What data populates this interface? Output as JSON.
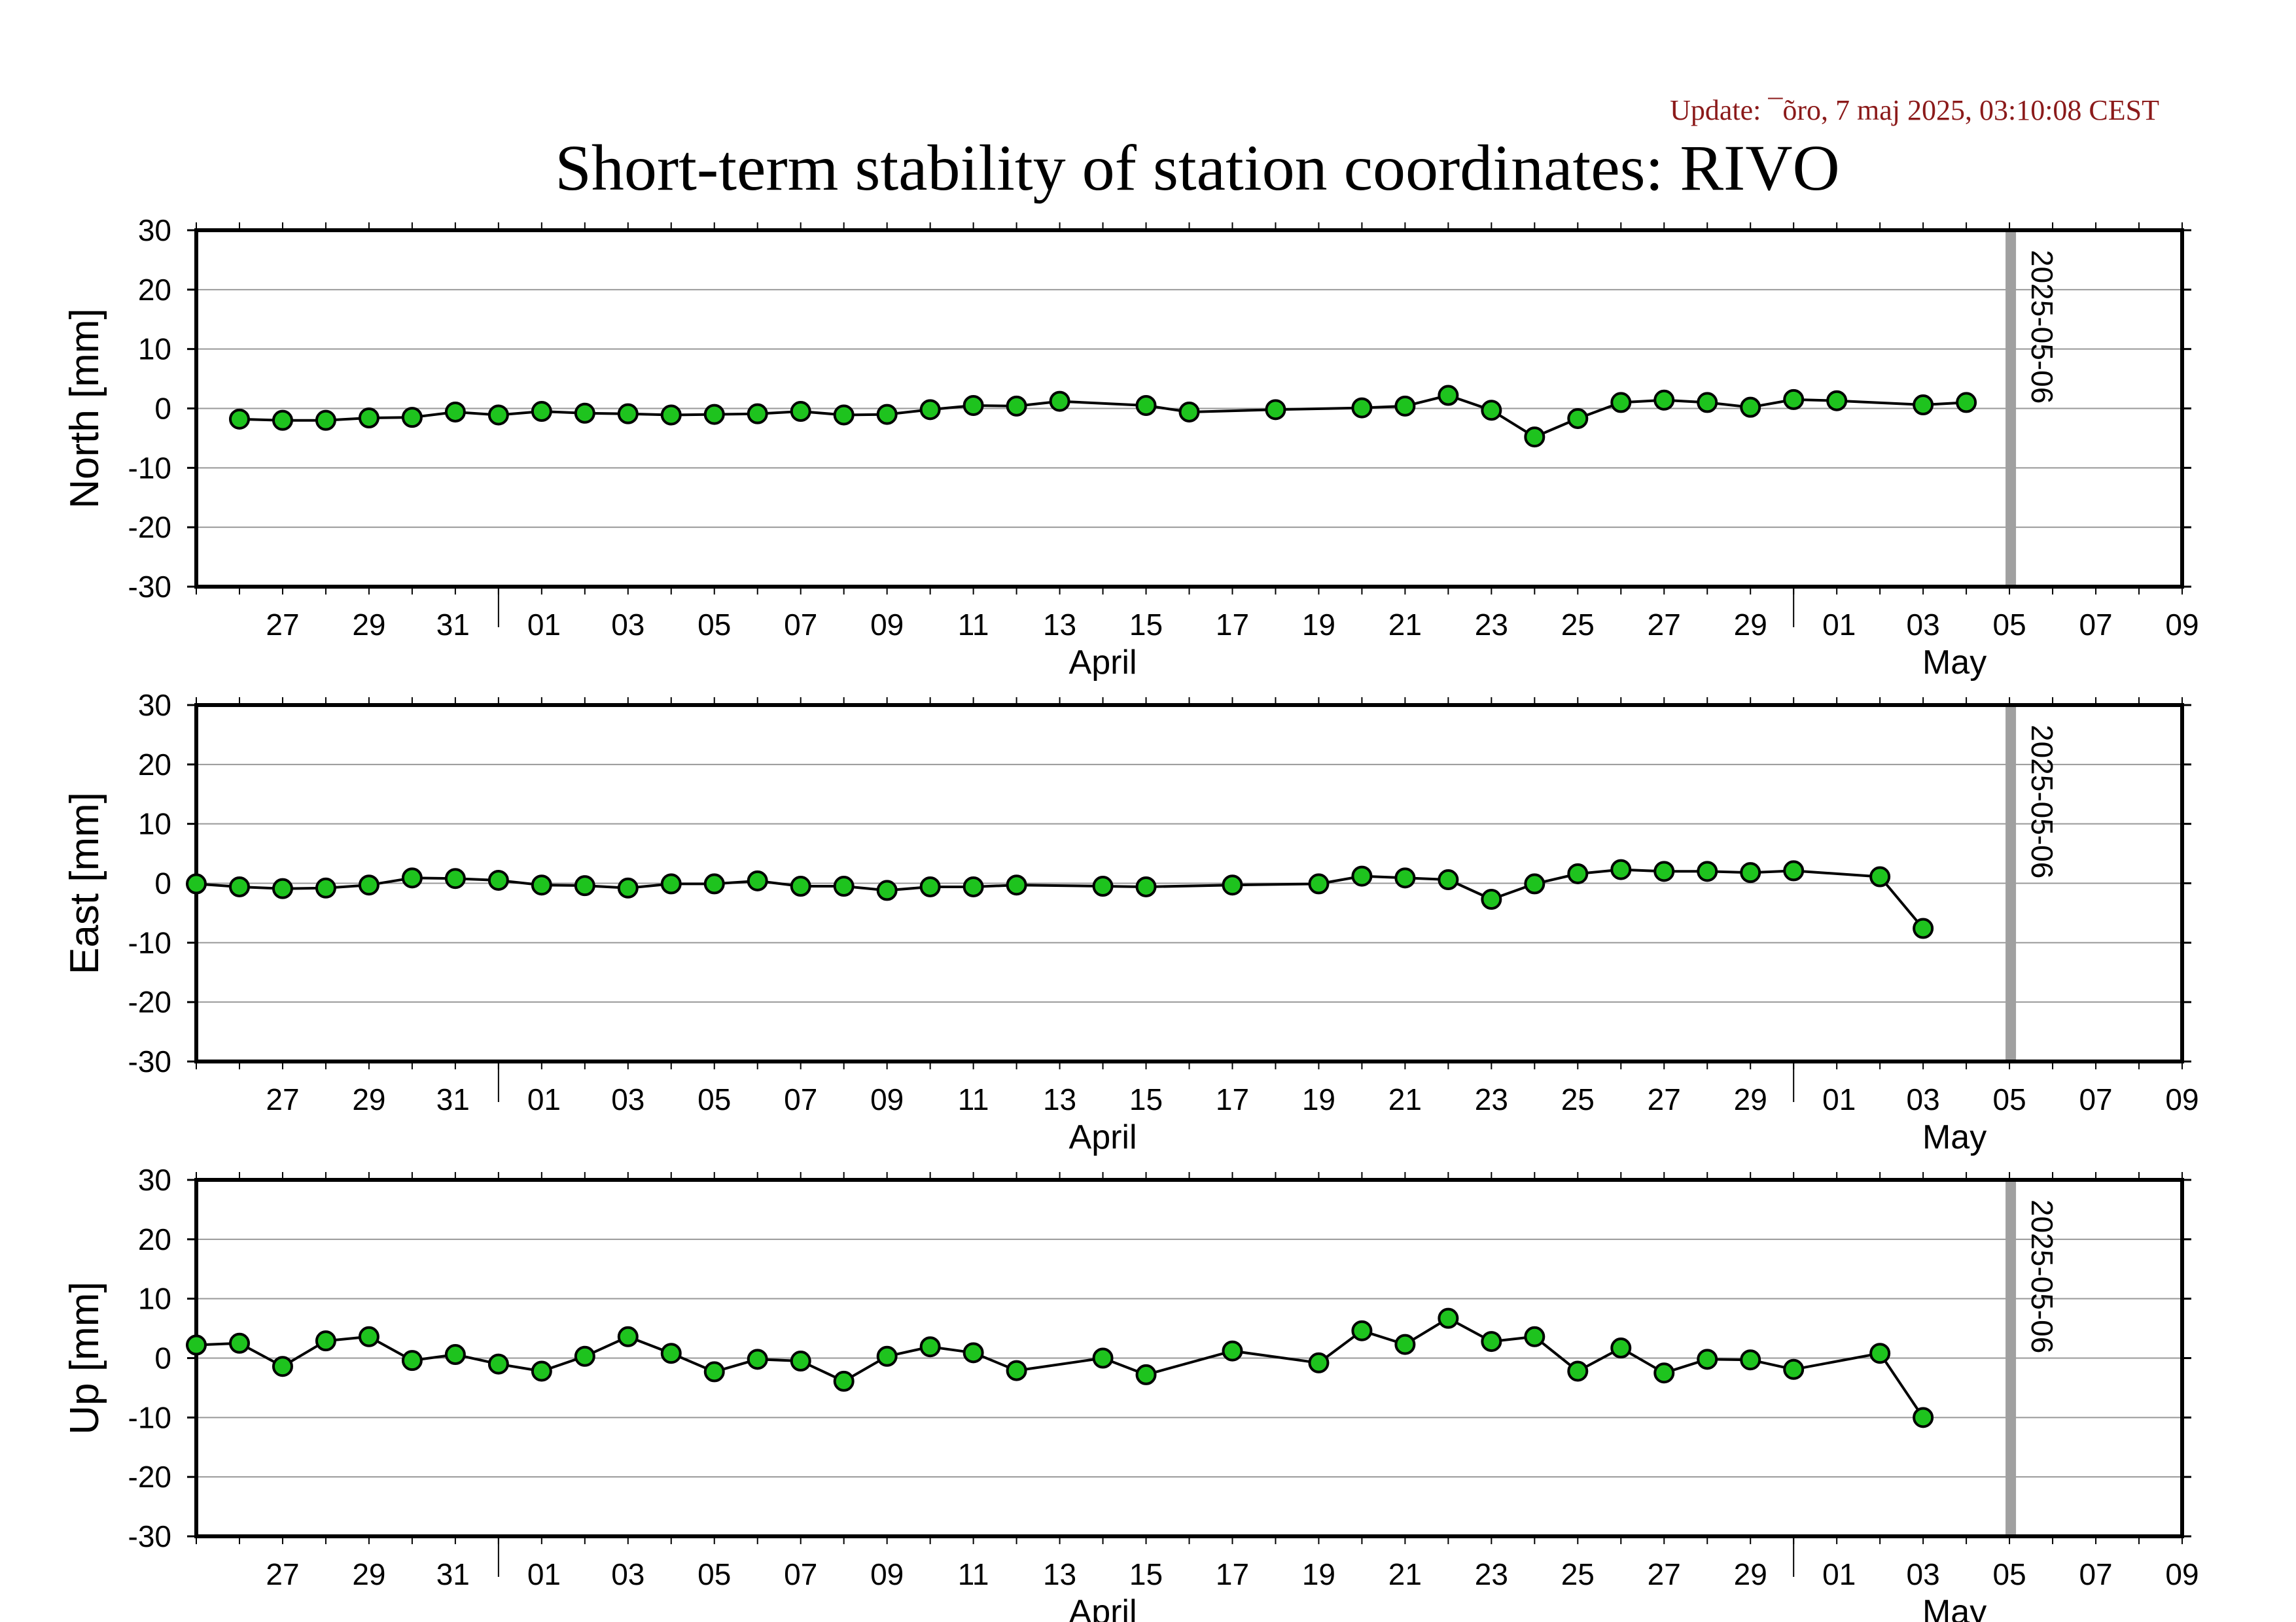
{
  "update_text": "Update: ¯õro, 7 maj 2025, 03:10:08 CEST",
  "title": "Short-term stability of station coordinates: RIVO",
  "colors": {
    "marker_fill": "#1ec31e",
    "marker_edge": "#000000",
    "line": "#000000",
    "grid": "#999999",
    "vline": "#a0a0a0",
    "update": "#8b1a1a"
  },
  "chart_data": [
    {
      "type": "line",
      "ylabel": "North [mm]",
      "ylim": [
        -30,
        30
      ],
      "yticks": [
        -30,
        -20,
        -10,
        0,
        10,
        20,
        30
      ],
      "xlim": [
        "2025-03-25",
        "2025-05-10"
      ],
      "x_tick_labels": [
        "27",
        "29",
        "31",
        "01",
        "03",
        "05",
        "07",
        "09",
        "11",
        "13",
        "15",
        "17",
        "19",
        "21",
        "23",
        "25",
        "27",
        "29",
        "01",
        "03",
        "05",
        "07",
        "09"
      ],
      "month_labels": [
        "April",
        "May"
      ],
      "grid": "horizontal",
      "vline": {
        "date": "2025-05-06",
        "label": "2025-05-06"
      },
      "series": [
        {
          "points": [
            [
              "2025-03-26",
              -1.8
            ],
            [
              "2025-03-27",
              -2.0
            ],
            [
              "2025-03-28",
              -2.0
            ],
            [
              "2025-03-29",
              -1.6
            ],
            [
              "2025-03-30",
              -1.5
            ],
            [
              "2025-03-31",
              -0.6
            ],
            [
              "2025-04-01",
              -1.1
            ],
            [
              "2025-04-02",
              -0.5
            ],
            [
              "2025-04-03",
              -0.8
            ],
            [
              "2025-04-04",
              -0.9
            ],
            [
              "2025-04-05",
              -1.1
            ],
            [
              "2025-04-06",
              -1.0
            ],
            [
              "2025-04-07",
              -0.9
            ],
            [
              "2025-04-08",
              -0.5
            ],
            [
              "2025-04-09",
              -1.1
            ],
            [
              "2025-04-10",
              -1.0
            ],
            [
              "2025-04-11",
              -0.2
            ],
            [
              "2025-04-12",
              0.5
            ],
            [
              "2025-04-13",
              0.4
            ],
            [
              "2025-04-14",
              1.2
            ],
            [
              "2025-04-16",
              0.5
            ],
            [
              "2025-04-17",
              -0.6
            ],
            [
              "2025-04-19",
              -0.2
            ],
            [
              "2025-04-21",
              0.1
            ],
            [
              "2025-04-22",
              0.4
            ],
            [
              "2025-04-23",
              2.2
            ],
            [
              "2025-04-24",
              -0.3
            ],
            [
              "2025-04-25",
              -4.8
            ],
            [
              "2025-04-26",
              -1.7
            ],
            [
              "2025-04-27",
              1.0
            ],
            [
              "2025-04-28",
              1.4
            ],
            [
              "2025-04-29",
              1.0
            ],
            [
              "2025-04-30",
              0.2
            ],
            [
              "2025-05-01",
              1.5
            ],
            [
              "2025-05-02",
              1.3
            ],
            [
              "2025-05-04",
              0.6
            ],
            [
              "2025-05-05",
              1.0
            ]
          ]
        }
      ]
    },
    {
      "type": "line",
      "ylabel": "East [mm]",
      "ylim": [
        -30,
        30
      ],
      "yticks": [
        -30,
        -20,
        -10,
        0,
        10,
        20,
        30
      ],
      "xlim": [
        "2025-03-25",
        "2025-05-10"
      ],
      "x_tick_labels": [
        "27",
        "29",
        "31",
        "01",
        "03",
        "05",
        "07",
        "09",
        "11",
        "13",
        "15",
        "17",
        "19",
        "21",
        "23",
        "25",
        "27",
        "29",
        "01",
        "03",
        "05",
        "07",
        "09"
      ],
      "month_labels": [
        "April",
        "May"
      ],
      "grid": "horizontal",
      "vline": {
        "date": "2025-05-06",
        "label": "2025-05-06"
      },
      "series": [
        {
          "points": [
            [
              "2025-03-25",
              -0.1
            ],
            [
              "2025-03-26",
              -0.6
            ],
            [
              "2025-03-27",
              -0.9
            ],
            [
              "2025-03-28",
              -0.8
            ],
            [
              "2025-03-29",
              -0.3
            ],
            [
              "2025-03-30",
              0.9
            ],
            [
              "2025-03-31",
              0.8
            ],
            [
              "2025-04-01",
              0.5
            ],
            [
              "2025-04-02",
              -0.3
            ],
            [
              "2025-04-03",
              -0.4
            ],
            [
              "2025-04-04",
              -0.8
            ],
            [
              "2025-04-05",
              -0.1
            ],
            [
              "2025-04-06",
              -0.1
            ],
            [
              "2025-04-07",
              0.4
            ],
            [
              "2025-04-08",
              -0.5
            ],
            [
              "2025-04-09",
              -0.5
            ],
            [
              "2025-04-10",
              -1.2
            ],
            [
              "2025-04-11",
              -0.6
            ],
            [
              "2025-04-12",
              -0.6
            ],
            [
              "2025-04-13",
              -0.3
            ],
            [
              "2025-04-15",
              -0.5
            ],
            [
              "2025-04-16",
              -0.6
            ],
            [
              "2025-04-18",
              -0.3
            ],
            [
              "2025-04-20",
              -0.1
            ],
            [
              "2025-04-21",
              1.2
            ],
            [
              "2025-04-22",
              0.9
            ],
            [
              "2025-04-23",
              0.6
            ],
            [
              "2025-04-24",
              -2.7
            ],
            [
              "2025-04-25",
              -0.1
            ],
            [
              "2025-04-26",
              1.6
            ],
            [
              "2025-04-27",
              2.3
            ],
            [
              "2025-04-28",
              2.0
            ],
            [
              "2025-04-29",
              2.0
            ],
            [
              "2025-04-30",
              1.8
            ],
            [
              "2025-05-01",
              2.1
            ],
            [
              "2025-05-03",
              1.1
            ],
            [
              "2025-05-04",
              -7.6
            ]
          ]
        }
      ]
    },
    {
      "type": "line",
      "ylabel": "Up [mm]",
      "ylim": [
        -30,
        30
      ],
      "yticks": [
        -30,
        -20,
        -10,
        0,
        10,
        20,
        30
      ],
      "xlim": [
        "2025-03-25",
        "2025-05-10"
      ],
      "x_tick_labels": [
        "27",
        "29",
        "31",
        "01",
        "03",
        "05",
        "07",
        "09",
        "11",
        "13",
        "15",
        "17",
        "19",
        "21",
        "23",
        "25",
        "27",
        "29",
        "01",
        "03",
        "05",
        "07",
        "09"
      ],
      "month_labels": [
        "April",
        "May"
      ],
      "grid": "horizontal",
      "vline": {
        "date": "2025-05-06",
        "label": "2025-05-06"
      },
      "series": [
        {
          "points": [
            [
              "2025-03-25",
              2.2
            ],
            [
              "2025-03-26",
              2.5
            ],
            [
              "2025-03-27",
              -1.4
            ],
            [
              "2025-03-28",
              2.9
            ],
            [
              "2025-03-29",
              3.6
            ],
            [
              "2025-03-30",
              -0.4
            ],
            [
              "2025-03-31",
              0.6
            ],
            [
              "2025-04-01",
              -1.0
            ],
            [
              "2025-04-02",
              -2.2
            ],
            [
              "2025-04-03",
              0.3
            ],
            [
              "2025-04-04",
              3.6
            ],
            [
              "2025-04-05",
              0.8
            ],
            [
              "2025-04-06",
              -2.3
            ],
            [
              "2025-04-07",
              -0.2
            ],
            [
              "2025-04-08",
              -0.5
            ],
            [
              "2025-04-09",
              -3.9
            ],
            [
              "2025-04-10",
              0.3
            ],
            [
              "2025-04-11",
              1.9
            ],
            [
              "2025-04-12",
              0.9
            ],
            [
              "2025-04-13",
              -2.1
            ],
            [
              "2025-04-15",
              0.0
            ],
            [
              "2025-04-16",
              -2.8
            ],
            [
              "2025-04-18",
              1.2
            ],
            [
              "2025-04-20",
              -0.8
            ],
            [
              "2025-04-21",
              4.6
            ],
            [
              "2025-04-22",
              2.3
            ],
            [
              "2025-04-23",
              6.7
            ],
            [
              "2025-04-24",
              2.8
            ],
            [
              "2025-04-25",
              3.6
            ],
            [
              "2025-04-26",
              -2.2
            ],
            [
              "2025-04-27",
              1.7
            ],
            [
              "2025-04-28",
              -2.5
            ],
            [
              "2025-04-29",
              -0.2
            ],
            [
              "2025-04-30",
              -0.3
            ],
            [
              "2025-05-01",
              -1.9
            ],
            [
              "2025-05-03",
              0.8
            ],
            [
              "2025-05-04",
              -10.0
            ]
          ]
        }
      ]
    }
  ]
}
